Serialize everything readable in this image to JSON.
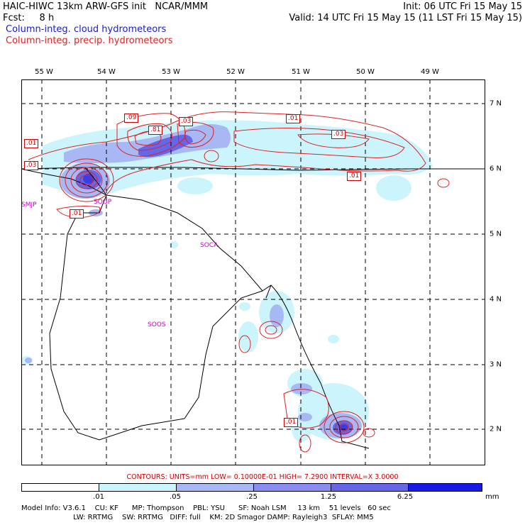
{
  "header": {
    "model_title": "HAIC-HIWC 13km ARW-GFS init   NCAR/MMM",
    "init": "Init: 06 UTC Fri 15 May 15",
    "fcst": "Fcst:     8 h",
    "valid": "Valid: 14 UTC Fri 15 May 15 (11 LST Fri 15 May 15)",
    "field_cloud": "Column-integ. cloud hydrometeors",
    "field_precip": "Column-integ. precip. hydrometeors"
  },
  "colors": {
    "cloud_text": "#1a1acc",
    "precip_text": "#dd2222",
    "shade_1": "#ccf4fc",
    "shade_2": "#a8b8f4",
    "shade_3": "#8a8cf0",
    "shade_4": "#6666e8",
    "shade_5": "#3c3ce6",
    "shade_6": "#1a1ae6",
    "contour": "#dd2222",
    "station": "#cc00cc"
  },
  "axes": {
    "lon_labels": [
      "55 W",
      "54 W",
      "53 W",
      "52 W",
      "51 W",
      "50 W",
      "49 W"
    ],
    "lat_labels": [
      "7 N",
      "6 N",
      "5 N",
      "4 N",
      "3 N",
      "2 N"
    ]
  },
  "stations": [
    {
      "id": "SMJP"
    },
    {
      "id": "SOCA"
    },
    {
      "id": "SOOS"
    },
    {
      "id": "SOGP"
    }
  ],
  "contour_labels": [
    ".01",
    ".03",
    ".09",
    ".81",
    ".03",
    ".01",
    ".03",
    ".01",
    ".01",
    ".01"
  ],
  "contours_info": {
    "text": "CONTOURS:  UNITS=mm   LOW= 0.10000E-01   HIGH=  7.2900     INTERVAL=X  3.0000"
  },
  "legend": {
    "labels": [
      ".01",
      ".05",
      ".25",
      "1.25",
      "6.25"
    ],
    "units": "mm"
  },
  "model_info": {
    "line1": "Model Info: V3.6.1    CU: KF      MP: Thompson    PBL: YSU      SF: Noah LSM     13 km    51 levels   60 sec",
    "line2": "                       LW: RRTMG    SW: RRTMG   DIFF: full    KM: 2D Smagor DAMP: Rayleigh3  SFLAY: MM5"
  }
}
